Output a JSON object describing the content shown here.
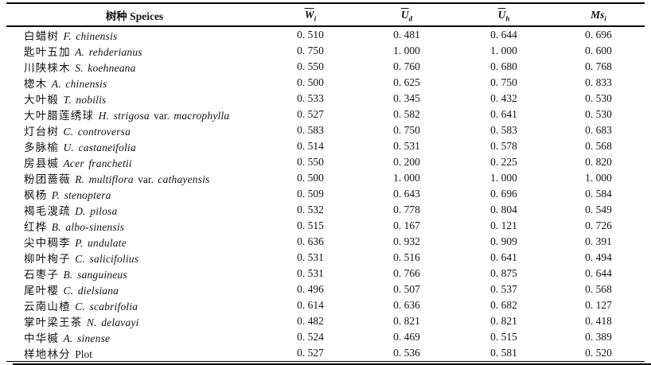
{
  "page": {
    "background": "#ffffff",
    "text_color": "#141414",
    "rule_color": "#000000"
  },
  "table": {
    "header": {
      "species_label": "树种 Speices",
      "columns": [
        {
          "name": "wi",
          "base": "W",
          "sub": "i",
          "overline": true
        },
        {
          "name": "ud",
          "base": "U",
          "sub": "d",
          "overline": true
        },
        {
          "name": "uh",
          "base": "U",
          "sub": "h",
          "overline": true
        },
        {
          "name": "msi",
          "base": "Ms",
          "sub": "i",
          "overline": false
        }
      ]
    },
    "rows": [
      {
        "cn": "白蜡树",
        "latin": [
          {
            "t": "F. chinensis",
            "i": true
          }
        ],
        "values": [
          "0. 510",
          "0. 481",
          "0. 644",
          "0. 696"
        ]
      },
      {
        "cn": "匙叶五加",
        "latin": [
          {
            "t": "A. rehderianus",
            "i": true
          }
        ],
        "values": [
          "0. 750",
          "1. 000",
          "1. 000",
          "0. 600"
        ]
      },
      {
        "cn": "川陕梾木",
        "latin": [
          {
            "t": "S. koehneana",
            "i": true
          }
        ],
        "values": [
          "0. 550",
          "0. 760",
          "0. 680",
          "0. 768"
        ]
      },
      {
        "cn": "楤木",
        "latin": [
          {
            "t": "A. chinensis",
            "i": true
          }
        ],
        "values": [
          "0. 500",
          "0. 625",
          "0. 750",
          "0. 833"
        ]
      },
      {
        "cn": "大叶椴",
        "latin": [
          {
            "t": "T. nobilis",
            "i": true
          }
        ],
        "values": [
          "0. 533",
          "0. 345",
          "0. 432",
          "0. 530"
        ]
      },
      {
        "cn": "大叶腊莲绣球",
        "latin": [
          {
            "t": "H. strigosa",
            "i": true
          },
          {
            "t": " var. ",
            "i": false
          },
          {
            "t": "macrophylla",
            "i": true
          }
        ],
        "values": [
          "0. 527",
          "0. 582",
          "0. 641",
          "0. 530"
        ]
      },
      {
        "cn": "灯台树",
        "latin": [
          {
            "t": "C. controversa",
            "i": true
          }
        ],
        "values": [
          "0. 583",
          "0. 750",
          "0. 583",
          "0. 683"
        ]
      },
      {
        "cn": "多脉榆",
        "latin": [
          {
            "t": "U. castaneifolia",
            "i": true
          }
        ],
        "values": [
          "0. 514",
          "0. 531",
          "0. 578",
          "0. 568"
        ]
      },
      {
        "cn": "房县槭",
        "latin": [
          {
            "t": "Acer franchetii",
            "i": true
          }
        ],
        "values": [
          "0. 550",
          "0. 200",
          "0. 225",
          "0. 820"
        ]
      },
      {
        "cn": "粉团蔷薇",
        "latin": [
          {
            "t": "R. multiflora",
            "i": true
          },
          {
            "t": " var. ",
            "i": false
          },
          {
            "t": "cathayensis",
            "i": true
          }
        ],
        "values": [
          "0. 500",
          "1. 000",
          "1. 000",
          "1. 000"
        ]
      },
      {
        "cn": "枫杨",
        "latin": [
          {
            "t": "P. stenoptera",
            "i": true
          }
        ],
        "values": [
          "0. 509",
          "0. 643",
          "0. 696",
          "0. 584"
        ]
      },
      {
        "cn": "褐毛溲疏",
        "latin": [
          {
            "t": "D. pilosa",
            "i": true
          }
        ],
        "values": [
          "0. 532",
          "0. 778",
          "0. 804",
          "0. 549"
        ]
      },
      {
        "cn": "红桦",
        "latin": [
          {
            "t": "B. albo-sinensis",
            "i": true
          }
        ],
        "values": [
          "0. 515",
          "0. 167",
          "0. 121",
          "0. 726"
        ]
      },
      {
        "cn": "尖中稠李",
        "latin": [
          {
            "t": "P. undulate",
            "i": true
          }
        ],
        "values": [
          "0. 636",
          "0. 932",
          "0. 909",
          "0. 391"
        ]
      },
      {
        "cn": "柳叶栒子",
        "latin": [
          {
            "t": "C. salicifolius",
            "i": true
          }
        ],
        "values": [
          "0. 531",
          "0. 516",
          "0. 641",
          "0. 494"
        ]
      },
      {
        "cn": "石枣子",
        "latin": [
          {
            "t": "B. sanguineus",
            "i": true
          }
        ],
        "values": [
          "0. 531",
          "0. 766",
          "0. 875",
          "0. 644"
        ]
      },
      {
        "cn": "尾叶樱",
        "latin": [
          {
            "t": "C. dielsiana",
            "i": true
          }
        ],
        "values": [
          "0. 496",
          "0. 507",
          "0. 537",
          "0. 568"
        ]
      },
      {
        "cn": "云南山楂",
        "latin": [
          {
            "t": "C. scabrifolia",
            "i": true
          }
        ],
        "values": [
          "0. 614",
          "0. 636",
          "0. 682",
          "0. 127"
        ]
      },
      {
        "cn": "掌叶梁王茶",
        "latin": [
          {
            "t": "N. delavayi",
            "i": true
          }
        ],
        "values": [
          "0. 482",
          "0. 821",
          "0. 821",
          "0. 418"
        ]
      },
      {
        "cn": "中华槭",
        "latin": [
          {
            "t": "A. sinense",
            "i": true
          }
        ],
        "values": [
          "0. 524",
          "0. 469",
          "0. 515",
          "0. 389"
        ]
      },
      {
        "cn": "样地林分",
        "latin": [
          {
            "t": "Plot",
            "i": false
          }
        ],
        "values": [
          "0. 527",
          "0. 536",
          "0. 581",
          "0. 520"
        ]
      }
    ]
  }
}
